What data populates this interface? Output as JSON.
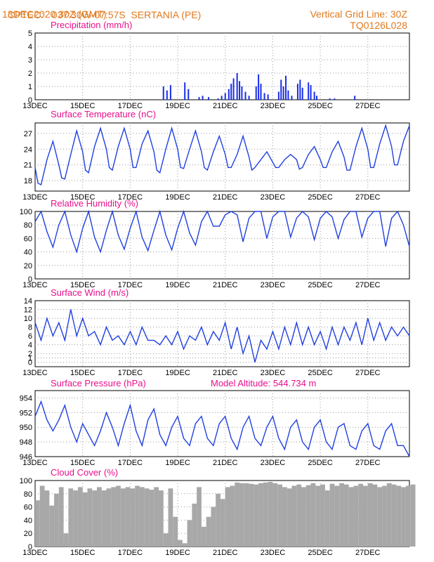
{
  "header": {
    "source": "CPTEC:",
    "coords": "037:30W-07:57S",
    "station": "SERTANIA (PE)",
    "date": "13DEC2020 30Z (GMT)",
    "grid_note": "Vertical Grid Line: 30Z",
    "code": "TQ0126L028"
  },
  "x_ticks": [
    "13DEC",
    "15DEC",
    "17DEC",
    "19DEC",
    "21DEC",
    "23DEC",
    "25DEC",
    "27DEC"
  ],
  "colors": {
    "line": "#2040e0",
    "bar": "#1a2ee8",
    "cloud": "#a8a8a8",
    "title": "#e8108c",
    "header": "#e07a1f"
  },
  "model_altitude": "Model Altitude: 544.734 m",
  "chart_data": [
    {
      "id": "precip",
      "type": "bar",
      "title": "Precipitation (mm/h)",
      "ylim": [
        0,
        5
      ],
      "yticks": [
        0,
        1,
        2,
        3,
        4,
        5
      ],
      "x": [
        5.4,
        5.55,
        5.7,
        6.3,
        6.45,
        6.9,
        7.05,
        7.3,
        7.7,
        7.85,
        8.0,
        8.15,
        8.25,
        8.35,
        8.5,
        8.6,
        8.7,
        8.85,
        9.0,
        9.3,
        9.4,
        9.5,
        9.65,
        9.8,
        10.25,
        10.35,
        10.45,
        10.55,
        10.65,
        10.8,
        11.05,
        11.15,
        11.25,
        11.5,
        11.6,
        11.75,
        11.85,
        12.4,
        12.6,
        13.45
      ],
      "values": [
        1.0,
        0.7,
        1.1,
        1.3,
        0.8,
        0.2,
        0.3,
        0.2,
        0.1,
        0.3,
        0.5,
        0.8,
        1.2,
        1.6,
        2.0,
        1.4,
        1.0,
        0.6,
        0.3,
        1.0,
        1.9,
        1.2,
        0.5,
        0.4,
        0.6,
        1.5,
        1.0,
        1.8,
        0.7,
        0.3,
        1.2,
        1.5,
        0.9,
        1.3,
        1.1,
        0.6,
        0.3,
        0.1,
        0.1,
        0.3
      ]
    },
    {
      "id": "temp",
      "type": "line",
      "title": "Surface Temperature (nC)",
      "ylim": [
        16,
        29
      ],
      "yticks": [
        18,
        21,
        24,
        27
      ],
      "x": [
        0,
        0.12,
        0.25,
        0.5,
        0.75,
        1.0,
        1.12,
        1.25,
        1.5,
        1.75,
        2.0,
        2.12,
        2.25,
        2.5,
        2.75,
        3.0,
        3.12,
        3.25,
        3.5,
        3.75,
        4.0,
        4.12,
        4.25,
        4.5,
        4.75,
        5.0,
        5.12,
        5.25,
        5.5,
        5.75,
        6.0,
        6.12,
        6.25,
        6.5,
        6.75,
        7.0,
        7.12,
        7.25,
        7.5,
        7.75,
        8.0,
        8.12,
        8.25,
        8.5,
        8.75,
        9.0,
        9.12,
        9.25,
        9.5,
        9.75,
        10.0,
        10.12,
        10.25,
        10.5,
        10.75,
        11.0,
        11.12,
        11.25,
        11.5,
        11.75,
        12.0,
        12.12,
        12.25,
        12.5,
        12.75,
        13.0,
        13.12,
        13.25,
        13.5,
        13.75,
        14.0,
        14.12,
        14.25,
        14.5,
        14.75,
        15.0,
        15.12,
        15.25,
        15.5,
        15.75
      ],
      "values": [
        20.5,
        17.5,
        17.2,
        22,
        25.5,
        21,
        18.5,
        18.3,
        23,
        27.5,
        23.5,
        20,
        19.5,
        24.5,
        28,
        24,
        20.5,
        20,
        24.5,
        28,
        24,
        20.5,
        20.5,
        25,
        27.5,
        23.5,
        20,
        19.5,
        24,
        28,
        24,
        20.5,
        20.3,
        24,
        27.5,
        23.5,
        20.5,
        20,
        23.5,
        26.5,
        23,
        20.5,
        20.5,
        23,
        26.5,
        22.5,
        20,
        20.5,
        22,
        23.5,
        21.5,
        20.5,
        20.5,
        22,
        23,
        22,
        20.2,
        20.5,
        23,
        24.5,
        22,
        20.5,
        20.5,
        23.5,
        25.5,
        22.5,
        20,
        20,
        24.5,
        28,
        24,
        20.5,
        20.5,
        25,
        28.5,
        24.5,
        21,
        21,
        25.5,
        28.5
      ]
    },
    {
      "id": "rh",
      "type": "line",
      "title": "Relative Humidity (%)",
      "ylim": [
        0,
        100
      ],
      "yticks": [
        0,
        20,
        40,
        60,
        80,
        100
      ],
      "x": [
        0,
        0.25,
        0.5,
        0.75,
        1.0,
        1.25,
        1.5,
        1.75,
        2.0,
        2.25,
        2.5,
        2.75,
        3.0,
        3.25,
        3.5,
        3.75,
        4.0,
        4.25,
        4.5,
        4.75,
        5.0,
        5.25,
        5.5,
        5.75,
        6.0,
        6.25,
        6.5,
        6.75,
        7.0,
        7.25,
        7.5,
        7.75,
        8.0,
        8.25,
        8.5,
        8.75,
        9.0,
        9.25,
        9.5,
        9.75,
        10.0,
        10.25,
        10.5,
        10.75,
        11.0,
        11.25,
        11.5,
        11.75,
        12.0,
        12.25,
        12.5,
        12.75,
        13.0,
        13.25,
        13.5,
        13.75,
        14.0,
        14.25,
        14.5,
        14.75,
        15.0,
        15.25,
        15.5,
        15.75
      ],
      "values": [
        85,
        100,
        70,
        47,
        80,
        100,
        65,
        40,
        75,
        100,
        62,
        40,
        72,
        100,
        65,
        44,
        75,
        100,
        62,
        42,
        72,
        100,
        65,
        43,
        75,
        100,
        68,
        50,
        85,
        100,
        78,
        78,
        95,
        100,
        95,
        55,
        90,
        100,
        100,
        60,
        92,
        100,
        100,
        62,
        90,
        100,
        92,
        58,
        90,
        100,
        92,
        60,
        88,
        100,
        100,
        62,
        90,
        100,
        100,
        48,
        90,
        100,
        80,
        48
      ]
    },
    {
      "id": "wind",
      "type": "line",
      "title": "Surface Wind (m/s)",
      "ylim": [
        -1,
        14
      ],
      "yticks": [
        0,
        1,
        2,
        4,
        6,
        8,
        10,
        12,
        14
      ],
      "x": [
        0,
        0.25,
        0.5,
        0.75,
        1.0,
        1.25,
        1.5,
        1.75,
        2.0,
        2.25,
        2.5,
        2.75,
        3.0,
        3.25,
        3.5,
        3.75,
        4.0,
        4.25,
        4.5,
        4.75,
        5.0,
        5.25,
        5.5,
        5.75,
        6.0,
        6.25,
        6.5,
        6.75,
        7.0,
        7.25,
        7.5,
        7.75,
        8.0,
        8.25,
        8.5,
        8.75,
        9.0,
        9.25,
        9.5,
        9.75,
        10.0,
        10.25,
        10.5,
        10.75,
        11.0,
        11.25,
        11.5,
        11.75,
        12.0,
        12.25,
        12.5,
        12.75,
        13.0,
        13.25,
        13.5,
        13.75,
        14.0,
        14.25,
        14.5,
        14.75,
        15.0,
        15.25,
        15.5,
        15.75
      ],
      "values": [
        9,
        5,
        10,
        6,
        9,
        5,
        12,
        6,
        10,
        6,
        7,
        4,
        8,
        5,
        6,
        4,
        7,
        4,
        8,
        5,
        5,
        4,
        6,
        4,
        7,
        3,
        6,
        5,
        8,
        4,
        7,
        5,
        9,
        3,
        8,
        2,
        6,
        0,
        5,
        3,
        7,
        3,
        8,
        4,
        9,
        4,
        8,
        4,
        7,
        3,
        8,
        4,
        8,
        5,
        9,
        4,
        10,
        5,
        9,
        5,
        8,
        6,
        8,
        6
      ]
    },
    {
      "id": "pressure",
      "type": "line",
      "title": "Surface Pressure (hPa)",
      "ylim": [
        946,
        955
      ],
      "yticks": [
        946,
        948,
        950,
        952,
        954
      ],
      "x": [
        0,
        0.25,
        0.5,
        0.75,
        1.0,
        1.25,
        1.5,
        1.75,
        2.0,
        2.25,
        2.5,
        2.75,
        3.0,
        3.25,
        3.5,
        3.75,
        4.0,
        4.25,
        4.5,
        4.75,
        5.0,
        5.25,
        5.5,
        5.75,
        6.0,
        6.25,
        6.5,
        6.75,
        7.0,
        7.25,
        7.5,
        7.75,
        8.0,
        8.25,
        8.5,
        8.75,
        9.0,
        9.25,
        9.5,
        9.75,
        10.0,
        10.25,
        10.5,
        10.75,
        11.0,
        11.25,
        11.5,
        11.75,
        12.0,
        12.25,
        12.5,
        12.75,
        13.0,
        13.25,
        13.5,
        13.75,
        14.0,
        14.25,
        14.5,
        14.75,
        15.0,
        15.25,
        15.5,
        15.75
      ],
      "values": [
        951.5,
        953.5,
        951,
        949.5,
        951,
        953,
        950,
        948,
        950.5,
        949,
        947.5,
        949.5,
        952,
        950,
        947.5,
        950.5,
        953,
        949.5,
        947.5,
        951,
        952.5,
        949,
        947.5,
        950,
        951.5,
        948.5,
        947.5,
        950.5,
        951.5,
        948.5,
        947.5,
        950.5,
        951.5,
        948.5,
        947,
        950,
        951.5,
        948.5,
        947.5,
        950,
        951.5,
        948.5,
        947,
        950,
        951,
        948,
        947,
        950,
        951,
        948,
        947,
        950,
        950.5,
        947.5,
        947,
        949.5,
        950.5,
        947.5,
        947,
        949.5,
        950.5,
        947.5,
        947.5,
        946
      ]
    },
    {
      "id": "cloud",
      "type": "area",
      "title": "Cloud Cover (%)",
      "ylim": [
        0,
        100
      ],
      "yticks": [
        0,
        20,
        40,
        60,
        80,
        100
      ],
      "x": [
        0,
        0.2,
        0.4,
        0.6,
        0.8,
        1.0,
        1.2,
        1.4,
        1.6,
        1.8,
        2.0,
        2.2,
        2.4,
        2.6,
        2.8,
        3.0,
        3.2,
        3.4,
        3.6,
        3.8,
        4.0,
        4.2,
        4.4,
        4.6,
        4.8,
        5.0,
        5.2,
        5.4,
        5.6,
        5.8,
        6.0,
        6.2,
        6.4,
        6.6,
        6.8,
        7.0,
        7.2,
        7.4,
        7.6,
        7.8,
        8.0,
        8.2,
        8.4,
        8.6,
        8.8,
        9.0,
        9.2,
        9.4,
        9.6,
        9.8,
        10.0,
        10.2,
        10.4,
        10.6,
        10.8,
        11.0,
        11.2,
        11.4,
        11.6,
        11.8,
        12.0,
        12.2,
        12.4,
        12.6,
        12.8,
        13.0,
        13.2,
        13.4,
        13.6,
        13.8,
        14.0,
        14.2,
        14.4,
        14.6,
        14.8,
        15.0,
        15.2,
        15.4,
        15.6,
        15.8
      ],
      "values": [
        70,
        92,
        85,
        62,
        80,
        90,
        20,
        88,
        85,
        90,
        82,
        88,
        85,
        90,
        85,
        88,
        90,
        92,
        88,
        90,
        88,
        92,
        90,
        88,
        86,
        90,
        85,
        20,
        88,
        45,
        10,
        5,
        40,
        65,
        90,
        30,
        45,
        60,
        80,
        72,
        90,
        92,
        97,
        96,
        96,
        95,
        94,
        96,
        97,
        98,
        96,
        94,
        90,
        88,
        92,
        94,
        90,
        93,
        96,
        92,
        94,
        85,
        95,
        92,
        96,
        94,
        90,
        92,
        95,
        92,
        96,
        94,
        90,
        92,
        96,
        94,
        92,
        90,
        92,
        94
      ]
    }
  ]
}
